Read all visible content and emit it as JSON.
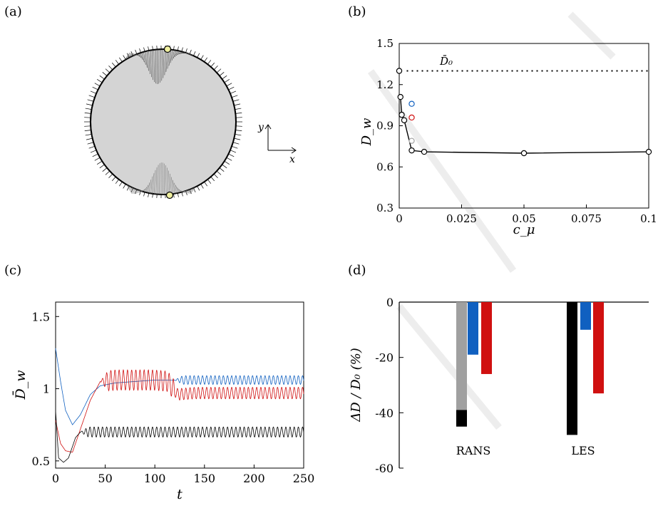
{
  "panels": {
    "a": {
      "label": "(a)"
    },
    "b": {
      "label": "(b)"
    },
    "c": {
      "label": "(c)"
    },
    "d": {
      "label": "(d)"
    }
  },
  "axes_symbols": {
    "x": "x",
    "y": "y"
  },
  "colors": {
    "black": "#000000",
    "blue": "#1060c0",
    "red": "#d01010",
    "gray": "#a0a0a0",
    "cylinder": "#d4d4d4",
    "marker": "#f0f0a0"
  },
  "chart_data": [
    {
      "panel": "b",
      "type": "scatter",
      "xlabel": "c_μ",
      "ylabel": "D_w",
      "xlim": [
        0,
        0.1
      ],
      "ylim": [
        0.3,
        1.5
      ],
      "xticks": [
        "0",
        "0.025",
        "0.05",
        "0.075",
        "0.1"
      ],
      "yticks": [
        "0.3",
        "0.6",
        "0.9",
        "1.2",
        "1.5"
      ],
      "reference": {
        "label": "D̄₀",
        "value": 1.3
      },
      "series": [
        {
          "color": "black",
          "line": true,
          "x": [
            0,
            0.0005,
            0.001,
            0.002,
            0.005,
            0.01,
            0.05,
            0.1
          ],
          "y": [
            1.3,
            1.11,
            0.98,
            0.94,
            0.72,
            0.71,
            0.7,
            0.71
          ]
        },
        {
          "color": "blue",
          "line": false,
          "x": [
            0.005
          ],
          "y": [
            1.06
          ]
        },
        {
          "color": "red",
          "line": false,
          "x": [
            0.005
          ],
          "y": [
            0.96
          ]
        },
        {
          "color": "gray",
          "line": false,
          "x": [
            0.005
          ],
          "y": [
            0.79
          ]
        }
      ]
    },
    {
      "panel": "c",
      "type": "line",
      "xlabel": "t",
      "ylabel": "D̄_w",
      "xlim": [
        0,
        250
      ],
      "ylim": [
        0.45,
        1.6
      ],
      "xticks": [
        "0",
        "50",
        "100",
        "150",
        "200",
        "250"
      ],
      "yticks": [
        "0.5",
        "1",
        "1.5"
      ],
      "series": [
        {
          "color": "blue",
          "t": [
            0,
            5,
            10,
            17,
            25,
            35,
            45,
            60,
            80,
            100,
            120,
            140,
            160,
            200,
            250
          ],
          "y": [
            1.28,
            1.05,
            0.85,
            0.75,
            0.82,
            0.96,
            1.02,
            1.04,
            1.05,
            1.06,
            1.06,
            1.06,
            1.06,
            1.06,
            1.06
          ],
          "osc_start": 120,
          "osc_amp": 0.03
        },
        {
          "color": "red",
          "t": [
            0,
            5,
            10,
            17,
            25,
            35,
            45,
            60,
            80,
            100,
            113,
            123,
            140,
            200,
            250
          ],
          "y": [
            0.78,
            0.62,
            0.57,
            0.56,
            0.72,
            0.92,
            1.05,
            1.06,
            1.06,
            1.06,
            1.05,
            0.96,
            0.97,
            0.97,
            0.97
          ],
          "osc_start": 45,
          "osc_amp": 0.07,
          "osc_amp_late": 0.04
        },
        {
          "color": "black",
          "t": [
            0,
            3,
            8,
            13,
            20,
            25,
            30,
            50,
            100,
            250
          ],
          "y": [
            0.85,
            0.52,
            0.49,
            0.52,
            0.66,
            0.7,
            0.7,
            0.7,
            0.7,
            0.7
          ],
          "osc_start": 25,
          "osc_amp": 0.035
        }
      ]
    },
    {
      "panel": "d",
      "type": "bar",
      "ylabel": "ΔD / D₀ (%)",
      "ylim": [
        -60,
        0
      ],
      "yticks": [
        "0",
        "-20",
        "-40",
        "-60"
      ],
      "categories": [
        "RANS",
        "LES"
      ],
      "bars": [
        {
          "category": "RANS",
          "color": "black",
          "value": -45
        },
        {
          "category": "RANS",
          "color": "gray",
          "value": -39
        },
        {
          "category": "RANS",
          "color": "blue",
          "value": -19
        },
        {
          "category": "RANS",
          "color": "red",
          "value": -26
        },
        {
          "category": "LES",
          "color": "black",
          "value": -48
        },
        {
          "category": "LES",
          "color": "blue",
          "value": -10
        },
        {
          "category": "LES",
          "color": "red",
          "value": -33
        }
      ]
    }
  ]
}
